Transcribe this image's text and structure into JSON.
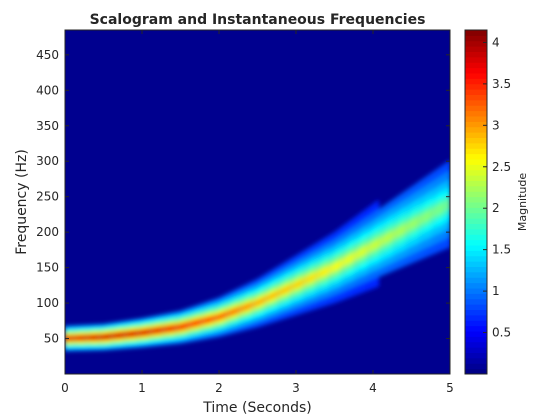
{
  "chart_data": {
    "type": "heatmap",
    "title": "Scalogram and Instantaneous Frequencies",
    "xlabel": "Time (Seconds)",
    "ylabel": "Frequency (Hz)",
    "xlim": [
      0,
      5
    ],
    "ylim": [
      0,
      485
    ],
    "x_ticks": [
      0,
      1,
      2,
      3,
      4,
      5
    ],
    "y_ticks": [
      50,
      100,
      150,
      200,
      250,
      300,
      350,
      400,
      450
    ],
    "colormap": "jet",
    "colorbar": {
      "label": "Magnitude",
      "range": [
        0,
        4.15
      ],
      "ticks": [
        0.5,
        1,
        1.5,
        2,
        2.5,
        3,
        3.5,
        4
      ],
      "tick_labels": [
        "0.5",
        "1",
        "1.5",
        "2",
        "2.5",
        "3",
        "3.5",
        "4"
      ]
    },
    "ridge": {
      "description_points": [
        {
          "time": 0,
          "frequency": 50,
          "magnitude": 3.8
        },
        {
          "time": 0.5,
          "frequency": 52,
          "magnitude": 4.0
        },
        {
          "time": 1,
          "frequency": 58,
          "magnitude": 3.9
        },
        {
          "time": 1.5,
          "frequency": 66,
          "magnitude": 3.7
        },
        {
          "time": 2,
          "frequency": 80,
          "magnitude": 3.4
        },
        {
          "time": 2.5,
          "frequency": 100,
          "magnitude": 3.0
        },
        {
          "time": 3,
          "frequency": 125,
          "magnitude": 2.8
        },
        {
          "time": 3.5,
          "frequency": 150,
          "magnitude": 2.6
        },
        {
          "time": 4,
          "frequency": 180,
          "magnitude": 2.4
        },
        {
          "time": 4.5,
          "frequency": 210,
          "magnitude": 2.2
        },
        {
          "time": 5,
          "frequency": 240,
          "magnitude": 2.0
        }
      ]
    }
  },
  "colors": {
    "background": "#ffffff",
    "axis": "#262626",
    "plot_background": "#00008f"
  }
}
